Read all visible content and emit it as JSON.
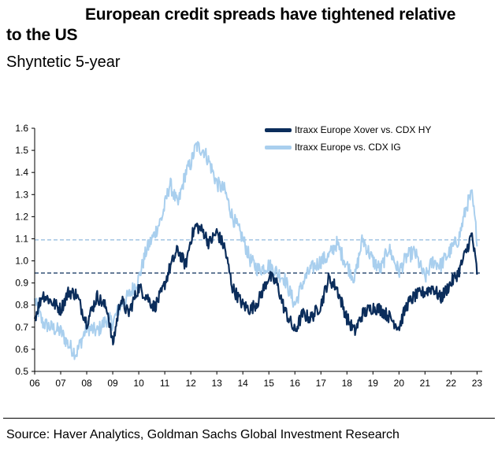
{
  "title_line1": "European credit spreads have tightened relative",
  "title_line2": "to the US",
  "subtitle": "Shyntetic 5-year",
  "source": "Source: Haver Analytics, Goldman Sachs Global Investment Research",
  "chart_data": {
    "type": "line",
    "title": "European credit spreads have tightened relative to the US",
    "subtitle": "Shyntetic 5-year",
    "xlabel": "",
    "ylabel": "",
    "xlim": [
      2006.0,
      2023.2
    ],
    "ylim": [
      0.5,
      1.6
    ],
    "yticks": [
      0.5,
      0.6,
      0.7,
      0.8,
      0.9,
      1.0,
      1.1,
      1.2,
      1.3,
      1.4,
      1.5,
      1.6
    ],
    "ytick_labels": [
      "0.5",
      "0.6",
      "0.7",
      "0.8",
      "0.9",
      "1.0",
      "1.1",
      "1.2",
      "1.3",
      "1.4",
      "1.5",
      "1.6"
    ],
    "xticks": [
      2006,
      2007,
      2008,
      2009,
      2010,
      2011,
      2012,
      2013,
      2014,
      2015,
      2016,
      2017,
      2018,
      2019,
      2020,
      2021,
      2022,
      2023
    ],
    "xtick_labels": [
      "06",
      "07",
      "08",
      "09",
      "10",
      "11",
      "12",
      "13",
      "14",
      "15",
      "16",
      "17",
      "18",
      "19",
      "20",
      "21",
      "22",
      "23"
    ],
    "grid": false,
    "legend_position": "top-right",
    "series": [
      {
        "name": "Itraxx Europe Xover vs. CDX HY",
        "color": "#0b2d5b",
        "x": [
          2006.0,
          2006.3,
          2006.6,
          2007.0,
          2007.3,
          2007.6,
          2008.0,
          2008.4,
          2008.8,
          2009.0,
          2009.3,
          2009.6,
          2010.0,
          2010.3,
          2010.6,
          2010.9,
          2011.2,
          2011.5,
          2011.8,
          2012.0,
          2012.2,
          2012.5,
          2012.7,
          2013.0,
          2013.3,
          2013.6,
          2014.0,
          2014.3,
          2014.6,
          2015.0,
          2015.3,
          2015.6,
          2016.0,
          2016.3,
          2016.6,
          2017.0,
          2017.3,
          2017.6,
          2018.0,
          2018.3,
          2018.6,
          2019.0,
          2019.3,
          2019.6,
          2020.0,
          2020.3,
          2020.6,
          2021.0,
          2021.3,
          2021.6,
          2022.0,
          2022.3,
          2022.6,
          2022.8,
          2023.0
        ],
        "y": [
          0.74,
          0.85,
          0.82,
          0.78,
          0.86,
          0.85,
          0.72,
          0.84,
          0.78,
          0.62,
          0.83,
          0.76,
          0.88,
          0.84,
          0.79,
          0.86,
          0.97,
          1.05,
          0.98,
          1.1,
          1.16,
          1.13,
          1.08,
          1.13,
          1.06,
          0.88,
          0.8,
          0.78,
          0.82,
          0.93,
          0.9,
          0.78,
          0.68,
          0.76,
          0.74,
          0.8,
          0.92,
          0.88,
          0.74,
          0.68,
          0.76,
          0.79,
          0.78,
          0.75,
          0.7,
          0.8,
          0.84,
          0.86,
          0.88,
          0.83,
          0.9,
          0.95,
          1.05,
          1.12,
          0.95
        ],
        "average": 0.945
      },
      {
        "name": "Itraxx Europe vs. CDX IG",
        "color": "#a9cfee",
        "x": [
          2006.0,
          2006.3,
          2006.6,
          2007.0,
          2007.3,
          2007.6,
          2008.0,
          2008.4,
          2008.8,
          2009.0,
          2009.3,
          2009.6,
          2010.0,
          2010.3,
          2010.6,
          2010.9,
          2011.2,
          2011.5,
          2011.8,
          2012.0,
          2012.2,
          2012.5,
          2012.7,
          2013.0,
          2013.3,
          2013.6,
          2014.0,
          2014.3,
          2014.6,
          2015.0,
          2015.3,
          2015.6,
          2016.0,
          2016.3,
          2016.6,
          2017.0,
          2017.3,
          2017.6,
          2018.0,
          2018.3,
          2018.6,
          2019.0,
          2019.3,
          2019.6,
          2020.0,
          2020.3,
          2020.6,
          2021.0,
          2021.3,
          2021.6,
          2022.0,
          2022.3,
          2022.6,
          2022.8,
          2023.0
        ],
        "y": [
          0.82,
          0.72,
          0.7,
          0.68,
          0.62,
          0.58,
          0.7,
          0.68,
          0.74,
          0.72,
          0.8,
          0.84,
          0.92,
          1.05,
          1.12,
          1.2,
          1.35,
          1.25,
          1.4,
          1.44,
          1.52,
          1.5,
          1.45,
          1.35,
          1.32,
          1.2,
          1.1,
          1.0,
          0.96,
          0.98,
          0.95,
          0.92,
          0.8,
          0.9,
          0.96,
          1.0,
          1.02,
          1.08,
          0.98,
          0.92,
          1.1,
          1.0,
          0.96,
          1.06,
          0.95,
          1.02,
          1.04,
          0.92,
          1.0,
          0.98,
          1.05,
          1.1,
          1.25,
          1.3,
          1.1
        ],
        "average": 1.095
      }
    ]
  }
}
